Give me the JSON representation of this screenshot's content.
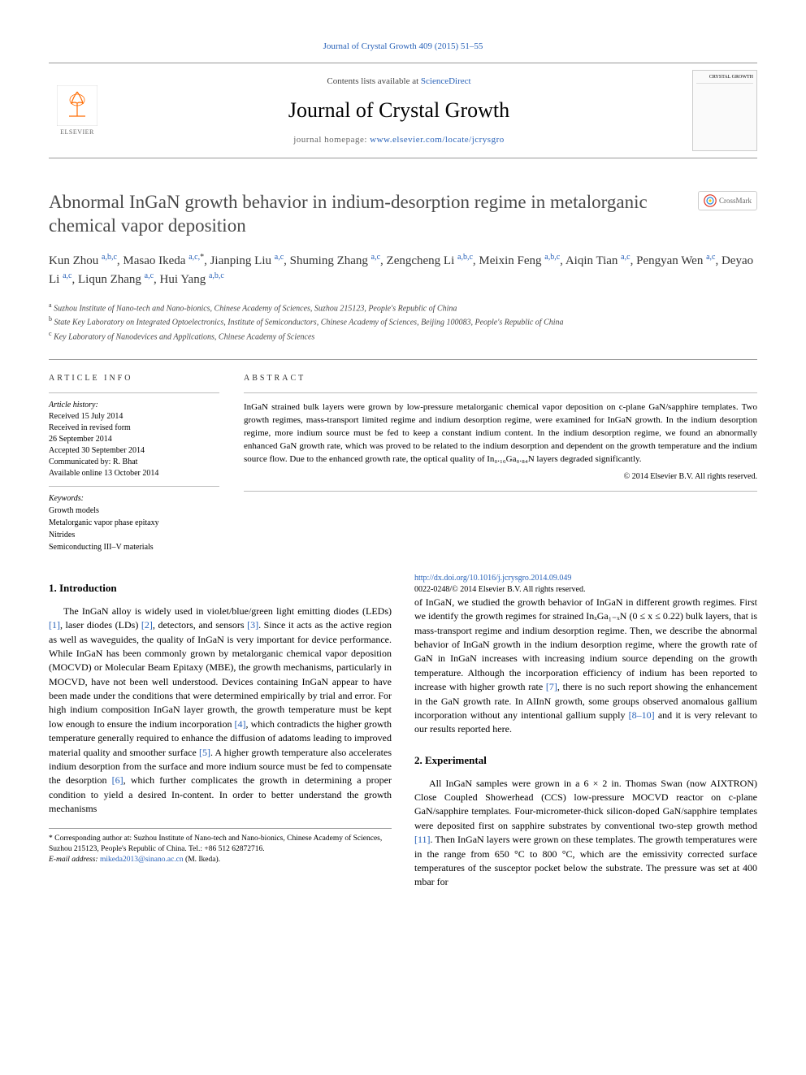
{
  "journal_top_link": "Journal of Crystal Growth 409 (2015) 51–55",
  "header": {
    "contents_prefix": "Contents lists available at ",
    "contents_link": "ScienceDirect",
    "journal_name": "Journal of Crystal Growth",
    "homepage_prefix": "journal homepage: ",
    "homepage_link": "www.elsevier.com/locate/jcrysgro",
    "elsevier_label": "ELSEVIER",
    "cover_label": "CRYSTAL GROWTH"
  },
  "crossmark": "CrossMark",
  "title": "Abnormal InGaN growth behavior in indium-desorption regime in metalorganic chemical vapor deposition",
  "authors_html": "Kun Zhou <span class='sup'>a,b,c</span>, Masao Ikeda <span class='sup'>a,c,</span><span class='sup star'>*</span>, Jianping Liu <span class='sup'>a,c</span>, Shuming Zhang <span class='sup'>a,c</span>, Zengcheng Li <span class='sup'>a,b,c</span>, Meixin Feng <span class='sup'>a,b,c</span>, Aiqin Tian <span class='sup'>a,c</span>, Pengyan Wen <span class='sup'>a,c</span>, Deyao Li <span class='sup'>a,c</span>, Liqun Zhang <span class='sup'>a,c</span>, Hui Yang <span class='sup'>a,b,c</span>",
  "affiliations": {
    "a": "Suzhou Institute of Nano-tech and Nano-bionics, Chinese Academy of Sciences, Suzhou 215123, People's Republic of China",
    "b": "State Key Laboratory on Integrated Optoelectronics, Institute of Semiconductors, Chinese Academy of Sciences, Beijing 100083, People's Republic of China",
    "c": "Key Laboratory of Nanodevices and Applications, Chinese Academy of Sciences"
  },
  "article_info": {
    "heading": "ARTICLE INFO",
    "history_label": "Article history:",
    "history": [
      "Received 15 July 2014",
      "Received in revised form",
      "26 September 2014",
      "Accepted 30 September 2014",
      "Communicated by: R. Bhat",
      "Available online 13 October 2014"
    ],
    "keywords_label": "Keywords:",
    "keywords": [
      "Growth models",
      "Metalorganic vapor phase epitaxy",
      "Nitrides",
      "Semiconducting III–V materials"
    ]
  },
  "abstract": {
    "heading": "ABSTRACT",
    "text": "InGaN strained bulk layers were grown by low-pressure metalorganic chemical vapor deposition on c-plane GaN/sapphire templates. Two growth regimes, mass-transport limited regime and indium desorption regime, were examined for InGaN growth. In the indium desorption regime, more indium source must be fed to keep a constant indium content. In the indium desorption regime, we found an abnormally enhanced GaN growth rate, which was proved to be related to the indium desorption and dependent on the growth temperature and the indium source flow. Due to the enhanced growth rate, the optical quality of In₀.₁₆Ga₀.₈₄N layers degraded significantly.",
    "copyright": "© 2014 Elsevier B.V. All rights reserved."
  },
  "sections": {
    "s1": {
      "heading": "1.  Introduction",
      "paras": [
        "The InGaN alloy is widely used in violet/blue/green light emitting diodes (LEDs) <span class='cite'>[1]</span>, laser diodes (LDs) <span class='cite'>[2]</span>, detectors, and sensors <span class='cite'>[3]</span>. Since it acts as the active region as well as waveguides, the quality of InGaN is very important for device performance. While InGaN has been commonly grown by metalorganic chemical vapor deposition (MOCVD) or Molecular Beam Epitaxy (MBE), the growth mechanisms, particularly in MOCVD, have not been well understood. Devices containing InGaN appear to have been made under the conditions that were determined empirically by trial and error. For high indium composition InGaN layer growth, the growth temperature must be kept low enough to ensure the indium incorporation <span class='cite'>[4]</span>, which contradicts the higher growth temperature generally required to enhance the diffusion of adatoms leading to improved material quality and smoother surface <span class='cite'>[5]</span>. A higher growth temperature also accelerates indium desorption from the surface and more indium source must be fed to compensate the desorption <span class='cite'>[6]</span>, which further complicates the growth in determining a proper condition to yield a desired In-content. In order to better understand the growth mechanisms",
        "of InGaN, we studied the growth behavior of InGaN in different growth regimes. First we identify the growth regimes for strained InₓGa₁₋ₓN (0 ≤ x ≤ 0.22) bulk layers, that is mass-transport regime and indium desorption regime. Then, we describe the abnormal behavior of InGaN growth in the indium desorption regime, where the growth rate of GaN in InGaN increases with increasing indium source depending on the growth temperature. Although the incorporation efficiency of indium has been reported to increase with higher growth rate <span class='cite'>[7]</span>, there is no such report showing the enhancement in the GaN growth rate. In AlInN growth, some groups observed anomalous gallium incorporation without any intentional gallium supply <span class='cite'>[8–10]</span> and it is very relevant to our results reported here."
      ]
    },
    "s2": {
      "heading": "2.  Experimental",
      "paras": [
        "All InGaN samples were grown in a 6 × 2 in. Thomas Swan (now AIXTRON) Close Coupled Showerhead (CCS) low-pressure MOCVD reactor on c-plane GaN/sapphire templates. Four-micrometer-thick silicon-doped GaN/sapphire templates were deposited first on sapphire substrates by conventional two-step growth method <span class='cite'>[11]</span>. Then InGaN layers were grown on these templates. The growth temperatures were in the range from 650 °C to 800 °C, which are the emissivity corrected surface temperatures of the susceptor pocket below the substrate. The pressure was set at 400 mbar for"
      ]
    }
  },
  "footnote": {
    "corr": "* Corresponding author at: Suzhou Institute of Nano-tech and Nano-bionics, Chinese Academy of Sciences, Suzhou 215123, People's Republic of China. Tel.: +86 512 62872716.",
    "email_label": "E-mail address: ",
    "email": "mikeda2013@sinano.ac.cn",
    "email_suffix": " (M. Ikeda)."
  },
  "doi": {
    "link": "http://dx.doi.org/10.1016/j.jcrysgro.2014.09.049",
    "issn": "0022-0248/© 2014 Elsevier B.V. All rights reserved."
  },
  "colors": {
    "link": "#2962b8",
    "text": "#000000",
    "heading": "#4a4a4a",
    "rule": "#999999",
    "elsevier_orange": "#ff6b00"
  }
}
